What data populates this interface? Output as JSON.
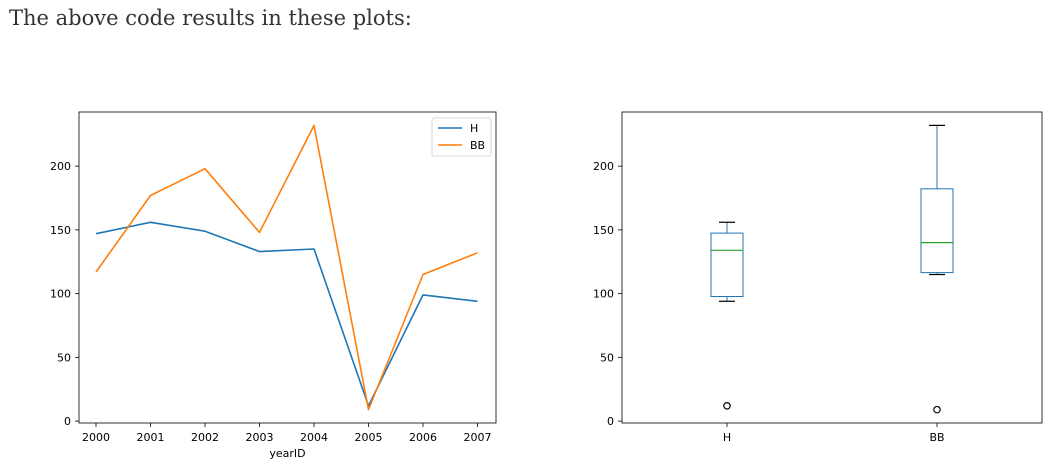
{
  "page": {
    "heading": "The above code results in these plots:"
  },
  "colors": {
    "H": "#1f77b4",
    "BB": "#ff7f0e",
    "median": "#2ca02c",
    "frame": "#000000"
  },
  "chart_data": [
    {
      "type": "line",
      "title": "",
      "xlabel": "yearID",
      "ylabel": "",
      "x": [
        2000,
        2001,
        2002,
        2003,
        2004,
        2005,
        2006,
        2007
      ],
      "x_tick_labels": [
        "2000",
        "2001",
        "2002",
        "2003",
        "2004",
        "2005",
        "2006",
        "2007"
      ],
      "y_ticks": [
        0,
        50,
        100,
        150,
        200
      ],
      "ylim": [
        -1.5,
        242.5
      ],
      "series": [
        {
          "name": "H",
          "values": [
            147,
            156,
            149,
            133,
            135,
            12,
            99,
            94
          ]
        },
        {
          "name": "BB",
          "values": [
            117,
            177,
            198,
            148,
            232,
            9,
            115,
            132
          ]
        }
      ],
      "legend": "top-right",
      "grid": false
    },
    {
      "type": "box",
      "title": "",
      "xlabel": "",
      "ylabel": "",
      "categories": [
        "H",
        "BB"
      ],
      "y_ticks": [
        0,
        50,
        100,
        150,
        200
      ],
      "ylim": [
        -1.5,
        242.5
      ],
      "boxes": [
        {
          "name": "H",
          "whisker_low": 94,
          "q1": 97.75,
          "median": 134,
          "q3": 147.5,
          "whisker_high": 156,
          "outliers": [
            12
          ]
        },
        {
          "name": "BB",
          "whisker_low": 115,
          "q1": 116.5,
          "median": 140,
          "q3": 182.25,
          "whisker_high": 232,
          "outliers": [
            9
          ]
        }
      ],
      "grid": false
    }
  ]
}
